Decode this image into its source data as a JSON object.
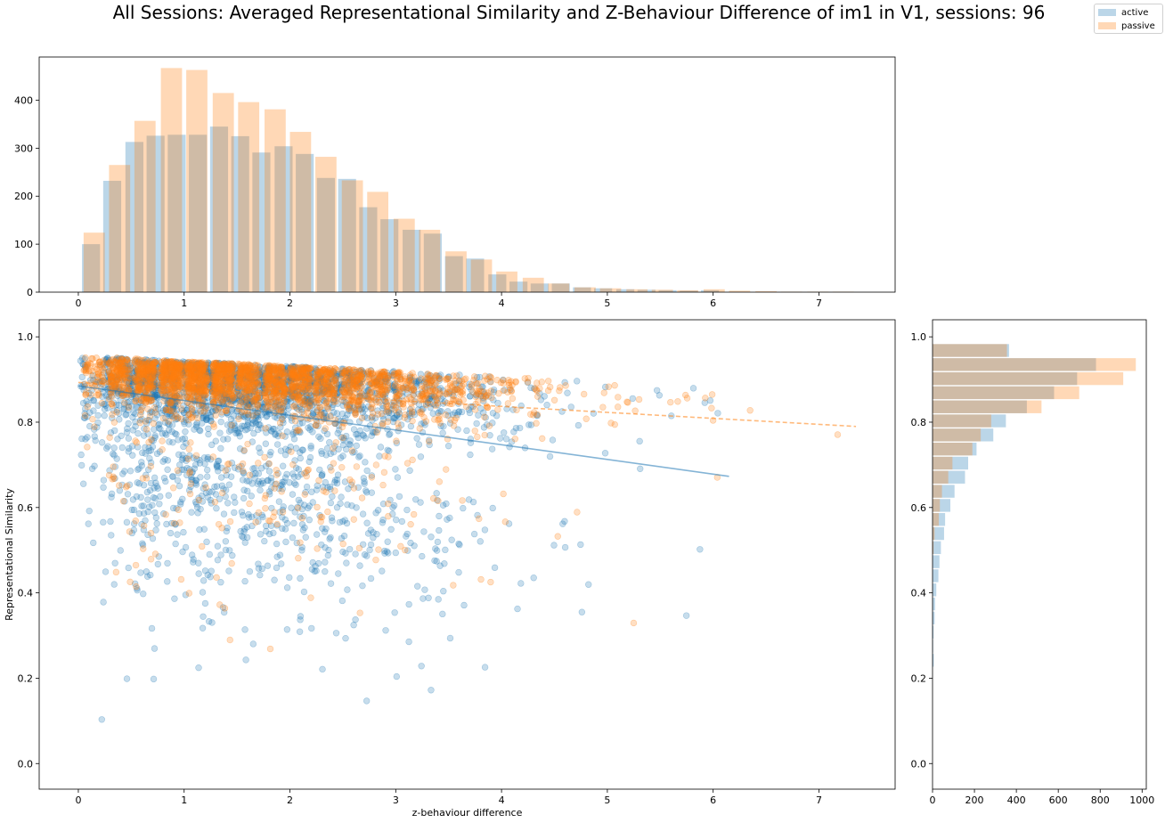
{
  "chart_data": {
    "type": "scatter",
    "title": "All Sessions: Averaged Representational Similarity and Z-Behaviour Difference of im1 in V1, sessions: 96",
    "legend": {
      "placement": "top-right",
      "entries": [
        "active",
        "passive"
      ]
    },
    "colors": {
      "active": "#1f77b4",
      "passive": "#ff7f0e"
    },
    "scatter": {
      "xlabel": "z-behaviour difference",
      "ylabel": "Representational Similarity",
      "xlim": [
        -0.37,
        7.72
      ],
      "ylim": [
        -0.06,
        1.04
      ],
      "xticks": [
        "0",
        "1",
        "2",
        "3",
        "4",
        "5",
        "6",
        "7"
      ],
      "yticks": [
        "0.0",
        "0.2",
        "0.4",
        "0.6",
        "0.8",
        "1.0"
      ],
      "grid": false,
      "trendlines": [
        {
          "name": "active",
          "x": [
            0.0,
            6.15
          ],
          "y": [
            0.885,
            0.673
          ],
          "style": "solid"
        },
        {
          "name": "passive",
          "x": [
            0.0,
            7.35
          ],
          "y": [
            0.893,
            0.79
          ],
          "style": "dashed"
        }
      ]
    },
    "x_histogram": {
      "type": "bar",
      "xlim": [
        -0.37,
        7.72
      ],
      "ylim": [
        0,
        490
      ],
      "xticks": [
        "0",
        "1",
        "2",
        "3",
        "4",
        "5",
        "6",
        "7"
      ],
      "yticks": [
        "0",
        "100",
        "200",
        "300",
        "400"
      ],
      "series": [
        {
          "name": "active",
          "x": [
            0.12,
            0.32,
            0.53,
            0.73,
            0.93,
            1.13,
            1.33,
            1.53,
            1.73,
            1.94,
            2.14,
            2.34,
            2.54,
            2.74,
            2.94,
            3.15,
            3.35,
            3.55,
            3.75,
            3.96,
            4.16,
            4.36,
            4.56,
            4.76,
            4.96,
            5.17,
            5.37,
            5.57,
            5.77,
            5.97
          ],
          "values": [
            100,
            232,
            313,
            326,
            328,
            328,
            345,
            325,
            291,
            304,
            288,
            238,
            236,
            177,
            152,
            130,
            122,
            75,
            70,
            37,
            22,
            18,
            18,
            10,
            8,
            6,
            5,
            4,
            3,
            4
          ]
        },
        {
          "name": "passive",
          "x": [
            0.15,
            0.39,
            0.63,
            0.88,
            1.12,
            1.37,
            1.61,
            1.86,
            2.1,
            2.34,
            2.59,
            2.83,
            3.08,
            3.32,
            3.57,
            3.81,
            4.05,
            4.3,
            4.54,
            4.79,
            5.03,
            5.28,
            5.52,
            5.76,
            6.01,
            6.25,
            6.5,
            6.74,
            6.99,
            7.23
          ],
          "values": [
            124,
            265,
            357,
            467,
            463,
            415,
            396,
            381,
            334,
            282,
            233,
            209,
            153,
            130,
            85,
            68,
            43,
            30,
            18,
            10,
            8,
            6,
            5,
            4,
            6,
            3,
            2,
            1,
            1,
            1
          ]
        }
      ]
    },
    "y_histogram": {
      "type": "bar",
      "orientation": "horizontal",
      "xlim": [
        0,
        1020
      ],
      "ylim": [
        -0.06,
        1.04
      ],
      "xticks": [
        "0",
        "200",
        "400",
        "600",
        "800",
        "1000"
      ],
      "yticks": [
        "0.0",
        "0.2",
        "0.4",
        "0.6",
        "0.8",
        "1.0"
      ],
      "series": [
        {
          "name": "active",
          "y": [
            0.968,
            0.935,
            0.902,
            0.869,
            0.836,
            0.803,
            0.77,
            0.737,
            0.704,
            0.671,
            0.638,
            0.605,
            0.572,
            0.539,
            0.506,
            0.473,
            0.44,
            0.407,
            0.374,
            0.341,
            0.308,
            0.275,
            0.242
          ],
          "values": [
            365,
            780,
            690,
            580,
            450,
            350,
            290,
            210,
            170,
            155,
            105,
            85,
            60,
            55,
            40,
            33,
            28,
            18,
            12,
            10,
            5,
            3,
            6
          ]
        },
        {
          "name": "passive",
          "y": [
            0.968,
            0.935,
            0.902,
            0.869,
            0.836,
            0.803,
            0.77,
            0.737,
            0.704,
            0.671,
            0.638,
            0.605,
            0.572,
            0.539,
            0.506
          ],
          "values": [
            355,
            970,
            910,
            700,
            520,
            280,
            230,
            190,
            95,
            75,
            45,
            35,
            30,
            10,
            5
          ]
        }
      ]
    }
  }
}
